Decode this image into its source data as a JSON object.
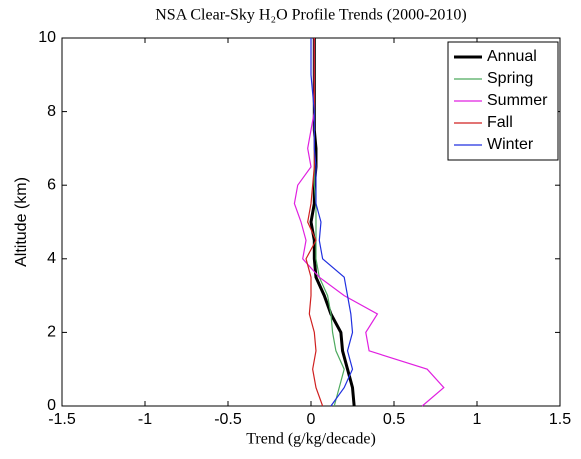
{
  "chart_data": {
    "type": "line",
    "orientation": "vertical-profile",
    "title": "NSA Clear-Sky H₂O Profile Trends (2000-2010)",
    "x_label": "Trend (g/kg/decade)",
    "y_label": "Altitude (km)",
    "y": [
      0,
      0.5,
      1,
      1.5,
      2,
      2.5,
      3,
      3.5,
      4,
      4.5,
      5,
      5.5,
      6,
      6.5,
      7,
      7.5,
      8,
      8.5,
      9,
      9.5,
      10
    ],
    "series": [
      {
        "name": "Annual",
        "color": "#000000",
        "width": 3,
        "values": [
          0.26,
          0.25,
          0.22,
          0.19,
          0.18,
          0.12,
          0.08,
          0.03,
          0.02,
          0.02,
          0.0,
          0.02,
          0.02,
          0.03,
          0.03,
          0.02,
          0.02,
          0.02,
          0.02,
          0.02,
          0.02
        ]
      },
      {
        "name": "Spring",
        "color": "#4daa5e",
        "width": 1.2,
        "values": [
          0.14,
          0.17,
          0.2,
          0.15,
          0.13,
          0.12,
          0.1,
          0.05,
          0.03,
          0.03,
          0.03,
          0.03,
          0.02,
          0.02,
          0.02,
          0.02,
          0.02,
          0.02,
          0.02,
          0.02,
          0.02
        ]
      },
      {
        "name": "Summer",
        "color": "#e020e0",
        "width": 1.2,
        "values": [
          0.67,
          0.8,
          0.7,
          0.35,
          0.33,
          0.4,
          0.2,
          0.05,
          -0.05,
          -0.03,
          -0.06,
          -0.1,
          -0.08,
          0.0,
          -0.02,
          0.0,
          0.02,
          0.02,
          0.02,
          0.02,
          0.02
        ]
      },
      {
        "name": "Fall",
        "color": "#d02020",
        "width": 1.2,
        "values": [
          0.07,
          0.03,
          0.01,
          0.03,
          0.02,
          -0.01,
          0.0,
          0.0,
          -0.03,
          0.03,
          -0.02,
          0.0,
          0.01,
          0.02,
          0.02,
          0.02,
          0.02,
          0.02,
          0.02,
          0.02,
          0.02
        ]
      },
      {
        "name": "Winter",
        "color": "#2030e0",
        "width": 1.2,
        "values": [
          0.12,
          0.2,
          0.25,
          0.22,
          0.25,
          0.24,
          0.22,
          0.2,
          0.07,
          0.05,
          0.06,
          0.03,
          0.03,
          0.03,
          0.02,
          0.02,
          0.02,
          0.01,
          0.0,
          0.0,
          0.0
        ]
      }
    ],
    "xlim": [
      -1.5,
      1.5
    ],
    "xticks": [
      -1.5,
      -1,
      -0.5,
      0,
      0.5,
      1,
      1.5
    ],
    "ylim": [
      0,
      10
    ],
    "yticks": [
      0,
      2,
      4,
      6,
      8,
      10
    ],
    "grid": false,
    "legend": "upper-right"
  }
}
